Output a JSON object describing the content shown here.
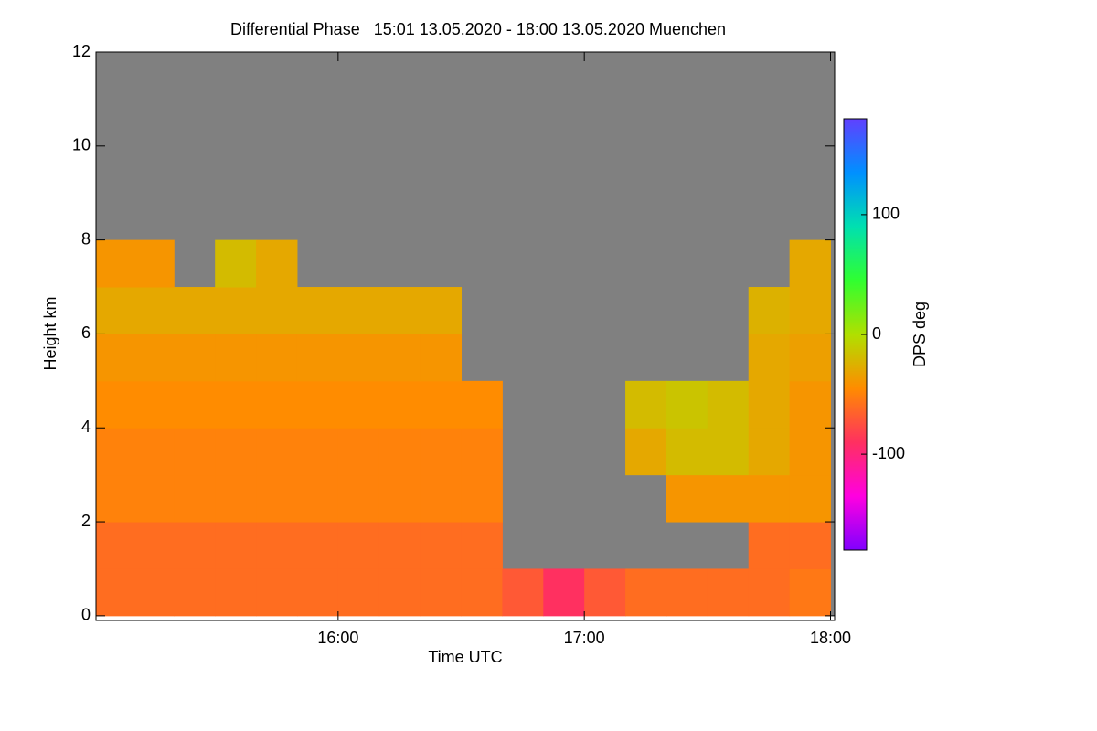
{
  "chart_data": {
    "type": "heatmap",
    "title": "Differential Phase   15:01 13.05.2020 - 18:00 13.05.2020 Muenchen",
    "x_label": "Time UTC",
    "y_label": "Height km",
    "colorbar_label": "DPS deg",
    "x_bins": [
      901,
      910,
      920,
      930,
      940,
      950,
      960,
      970,
      980,
      990,
      1000,
      1010,
      1020,
      1030,
      1040,
      1050,
      1060,
      1070,
      1080
    ],
    "y_bins": [
      0,
      1,
      2,
      3,
      4,
      5,
      6,
      7,
      8,
      9,
      10,
      11,
      12
    ],
    "values": [
      [
        -60,
        -60,
        -60,
        -60,
        -60,
        -60,
        -60,
        -60,
        -60,
        -60,
        -70,
        -90,
        -70,
        -60,
        -60,
        -60,
        -60,
        -55
      ],
      [
        -60,
        -60,
        -60,
        -60,
        -60,
        -60,
        -60,
        -60,
        -60,
        -60,
        null,
        null,
        null,
        null,
        null,
        null,
        -60,
        -60
      ],
      [
        -50,
        -50,
        -50,
        -50,
        -50,
        -50,
        -50,
        -50,
        -50,
        -50,
        null,
        null,
        null,
        null,
        -40,
        -40,
        -40,
        -40
      ],
      [
        -50,
        -50,
        -50,
        -50,
        -50,
        -50,
        -50,
        -50,
        -50,
        -50,
        null,
        null,
        null,
        -30,
        -20,
        -20,
        -30,
        -40
      ],
      [
        -45,
        -45,
        -45,
        -45,
        -45,
        -45,
        -45,
        -45,
        -45,
        -45,
        null,
        null,
        null,
        -20,
        -15,
        -20,
        -30,
        -40
      ],
      [
        -40,
        -40,
        -40,
        -40,
        -40,
        -40,
        -40,
        -40,
        -40,
        null,
        null,
        null,
        null,
        null,
        null,
        null,
        -30,
        -35
      ],
      [
        -30,
        -30,
        -30,
        -30,
        -30,
        -30,
        -30,
        -30,
        -30,
        null,
        null,
        null,
        null,
        null,
        null,
        null,
        -25,
        -30
      ],
      [
        -40,
        -40,
        null,
        -20,
        -30,
        null,
        null,
        null,
        null,
        null,
        null,
        null,
        null,
        null,
        null,
        null,
        null,
        -30
      ],
      [
        null,
        null,
        null,
        null,
        null,
        null,
        null,
        null,
        null,
        null,
        null,
        null,
        null,
        null,
        null,
        null,
        null,
        null
      ],
      [
        null,
        null,
        null,
        null,
        null,
        null,
        null,
        null,
        null,
        null,
        null,
        null,
        null,
        null,
        null,
        null,
        null,
        null
      ],
      [
        null,
        null,
        null,
        null,
        null,
        null,
        null,
        null,
        null,
        null,
        null,
        null,
        null,
        null,
        null,
        null,
        null,
        null
      ],
      [
        null,
        null,
        null,
        null,
        null,
        null,
        null,
        null,
        null,
        null,
        null,
        null,
        null,
        null,
        null,
        null,
        null,
        null
      ]
    ],
    "xlim": [
      901,
      1081
    ],
    "xticks": [
      {
        "value": 960,
        "label": "16:00"
      },
      {
        "value": 1020,
        "label": "17:00"
      },
      {
        "value": 1080,
        "label": "18:00"
      }
    ],
    "ylim": [
      -0.1,
      12
    ],
    "yticks": [
      0,
      2,
      4,
      6,
      8,
      10,
      12
    ],
    "clim": [
      -180,
      180
    ],
    "cticks": [
      -100,
      0,
      100
    ],
    "colormap": [
      "#8000ff",
      "#ff00e0",
      "#ff3060",
      "#ff8c00",
      "#b0e000",
      "#30ff30",
      "#00e0b0",
      "#0090ff",
      "#6040ff"
    ],
    "missing_color": "#808080"
  }
}
